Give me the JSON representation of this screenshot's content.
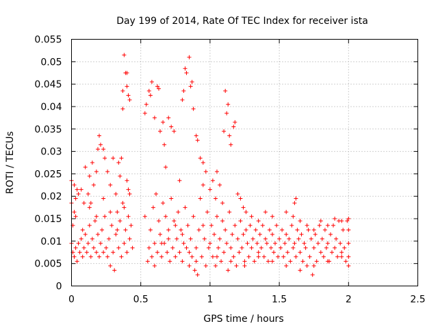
{
  "chart_data": {
    "type": "scatter",
    "title": "Day 199 of 2014, Rate Of TEC Index for receiver ista",
    "xlabel": "GPS time / hours",
    "ylabel": "ROTI / TECUs",
    "xlim": [
      0,
      2.5
    ],
    "ylim": [
      0,
      0.055
    ],
    "xticks": [
      "0",
      "0.5",
      "1",
      "1.5",
      "2",
      "2.5"
    ],
    "yticks": [
      "0",
      "0.005",
      "0.01",
      "0.015",
      "0.02",
      "0.025",
      "0.03",
      "0.035",
      "0.04",
      "0.045",
      "0.05",
      "0.055"
    ],
    "grid": true,
    "legend": "none",
    "marker": "plus",
    "color": "#ff0000",
    "points": [
      [
        0.0,
        0.0235
      ],
      [
        0.0,
        0.0185
      ],
      [
        0.01,
        0.0135
      ],
      [
        0.02,
        0.0165
      ],
      [
        0.02,
        0.0225
      ],
      [
        0.03,
        0.0195
      ],
      [
        0.04,
        0.0215
      ],
      [
        0.05,
        0.0205
      ],
      [
        0.07,
        0.0215
      ],
      [
        0.09,
        0.0185
      ],
      [
        0.1,
        0.0265
      ],
      [
        0.12,
        0.0205
      ],
      [
        0.13,
        0.0245
      ],
      [
        0.14,
        0.0185
      ],
      [
        0.15,
        0.0275
      ],
      [
        0.16,
        0.0225
      ],
      [
        0.18,
        0.0255
      ],
      [
        0.19,
        0.0305
      ],
      [
        0.2,
        0.0335
      ],
      [
        0.21,
        0.0315
      ],
      [
        0.23,
        0.0305
      ],
      [
        0.24,
        0.0285
      ],
      [
        0.26,
        0.0255
      ],
      [
        0.28,
        0.0225
      ],
      [
        0.3,
        0.0285
      ],
      [
        0.32,
        0.0205
      ],
      [
        0.34,
        0.0275
      ],
      [
        0.35,
        0.0245
      ],
      [
        0.36,
        0.0285
      ],
      [
        0.37,
        0.0395
      ],
      [
        0.37,
        0.0435
      ],
      [
        0.38,
        0.0515
      ],
      [
        0.39,
        0.0475
      ],
      [
        0.4,
        0.0475
      ],
      [
        0.4,
        0.0445
      ],
      [
        0.41,
        0.0425
      ],
      [
        0.42,
        0.0415
      ],
      [
        0.4,
        0.0235
      ],
      [
        0.41,
        0.0215
      ],
      [
        0.42,
        0.0205
      ],
      [
        0.0,
        0.0095
      ],
      [
        0.01,
        0.0075
      ],
      [
        0.02,
        0.0065
      ],
      [
        0.03,
        0.0085
      ],
      [
        0.04,
        0.0055
      ],
      [
        0.05,
        0.0095
      ],
      [
        0.06,
        0.0075
      ],
      [
        0.07,
        0.0105
      ],
      [
        0.08,
        0.0065
      ],
      [
        0.09,
        0.0085
      ],
      [
        0.1,
        0.0115
      ],
      [
        0.11,
        0.0075
      ],
      [
        0.12,
        0.0095
      ],
      [
        0.13,
        0.0135
      ],
      [
        0.14,
        0.0065
      ],
      [
        0.15,
        0.0105
      ],
      [
        0.16,
        0.0085
      ],
      [
        0.17,
        0.0145
      ],
      [
        0.18,
        0.0075
      ],
      [
        0.19,
        0.0115
      ],
      [
        0.2,
        0.0065
      ],
      [
        0.21,
        0.0095
      ],
      [
        0.22,
        0.0125
      ],
      [
        0.23,
        0.0075
      ],
      [
        0.24,
        0.0155
      ],
      [
        0.25,
        0.0085
      ],
      [
        0.26,
        0.0065
      ],
      [
        0.27,
        0.0105
      ],
      [
        0.28,
        0.0045
      ],
      [
        0.29,
        0.0135
      ],
      [
        0.3,
        0.0075
      ],
      [
        0.31,
        0.0035
      ],
      [
        0.32,
        0.0115
      ],
      [
        0.33,
        0.0165
      ],
      [
        0.34,
        0.0085
      ],
      [
        0.35,
        0.0145
      ],
      [
        0.36,
        0.0065
      ],
      [
        0.37,
        0.0185
      ],
      [
        0.38,
        0.0095
      ],
      [
        0.39,
        0.0125
      ],
      [
        0.4,
        0.0075
      ],
      [
        0.41,
        0.0155
      ],
      [
        0.42,
        0.0105
      ],
      [
        0.43,
        0.0135
      ],
      [
        0.44,
        0.0085
      ],
      [
        0.03,
        0.0155
      ],
      [
        0.08,
        0.0125
      ],
      [
        0.13,
        0.0175
      ],
      [
        0.18,
        0.0155
      ],
      [
        0.23,
        0.0195
      ],
      [
        0.28,
        0.0165
      ],
      [
        0.33,
        0.0125
      ],
      [
        0.38,
        0.0175
      ],
      [
        0.53,
        0.0385
      ],
      [
        0.54,
        0.0405
      ],
      [
        0.56,
        0.0435
      ],
      [
        0.57,
        0.0425
      ],
      [
        0.58,
        0.0455
      ],
      [
        0.6,
        0.0375
      ],
      [
        0.62,
        0.0445
      ],
      [
        0.63,
        0.044
      ],
      [
        0.64,
        0.0345
      ],
      [
        0.66,
        0.0365
      ],
      [
        0.67,
        0.0315
      ],
      [
        0.68,
        0.0265
      ],
      [
        0.7,
        0.0375
      ],
      [
        0.72,
        0.0355
      ],
      [
        0.74,
        0.0345
      ],
      [
        0.78,
        0.0235
      ],
      [
        0.8,
        0.0415
      ],
      [
        0.81,
        0.0435
      ],
      [
        0.82,
        0.0485
      ],
      [
        0.83,
        0.0475
      ],
      [
        0.85,
        0.051
      ],
      [
        0.86,
        0.0445
      ],
      [
        0.87,
        0.0455
      ],
      [
        0.88,
        0.0395
      ],
      [
        0.9,
        0.0335
      ],
      [
        0.91,
        0.0325
      ],
      [
        0.93,
        0.0285
      ],
      [
        0.95,
        0.0275
      ],
      [
        0.97,
        0.0255
      ],
      [
        0.53,
        0.0155
      ],
      [
        0.55,
        0.0055
      ],
      [
        0.56,
        0.0085
      ],
      [
        0.57,
        0.0125
      ],
      [
        0.58,
        0.0065
      ],
      [
        0.59,
        0.0175
      ],
      [
        0.6,
        0.0095
      ],
      [
        0.61,
        0.0205
      ],
      [
        0.62,
        0.0075
      ],
      [
        0.63,
        0.0145
      ],
      [
        0.64,
        0.0115
      ],
      [
        0.65,
        0.0065
      ],
      [
        0.66,
        0.0185
      ],
      [
        0.67,
        0.0095
      ],
      [
        0.68,
        0.0155
      ],
      [
        0.69,
        0.0075
      ],
      [
        0.7,
        0.0125
      ],
      [
        0.71,
        0.0055
      ],
      [
        0.72,
        0.0195
      ],
      [
        0.73,
        0.0085
      ],
      [
        0.74,
        0.0145
      ],
      [
        0.75,
        0.0065
      ],
      [
        0.76,
        0.0105
      ],
      [
        0.77,
        0.0165
      ],
      [
        0.78,
        0.0075
      ],
      [
        0.79,
        0.0125
      ],
      [
        0.8,
        0.0055
      ],
      [
        0.81,
        0.0095
      ],
      [
        0.82,
        0.0175
      ],
      [
        0.83,
        0.0085
      ],
      [
        0.84,
        0.0135
      ],
      [
        0.85,
        0.0045
      ],
      [
        0.86,
        0.0105
      ],
      [
        0.87,
        0.0065
      ],
      [
        0.88,
        0.0155
      ],
      [
        0.89,
        0.0035
      ],
      [
        0.9,
        0.0085
      ],
      [
        0.91,
        0.0025
      ],
      [
        0.92,
        0.0125
      ],
      [
        0.93,
        0.0195
      ],
      [
        0.94,
        0.0065
      ],
      [
        0.95,
        0.0225
      ],
      [
        0.96,
        0.0105
      ],
      [
        0.97,
        0.0045
      ],
      [
        0.98,
        0.0165
      ],
      [
        0.99,
        0.0085
      ],
      [
        0.6,
        0.0045
      ],
      [
        0.65,
        0.0095
      ],
      [
        0.7,
        0.0105
      ],
      [
        0.75,
        0.0135
      ],
      [
        0.8,
        0.0115
      ],
      [
        0.85,
        0.0075
      ],
      [
        0.9,
        0.0055
      ],
      [
        0.95,
        0.0135
      ],
      [
        1.0,
        0.0215
      ],
      [
        1.02,
        0.0235
      ],
      [
        1.04,
        0.0195
      ],
      [
        1.05,
        0.0255
      ],
      [
        1.07,
        0.0225
      ],
      [
        1.09,
        0.0185
      ],
      [
        1.1,
        0.0345
      ],
      [
        1.11,
        0.0435
      ],
      [
        1.12,
        0.0385
      ],
      [
        1.13,
        0.0405
      ],
      [
        1.14,
        0.0335
      ],
      [
        1.15,
        0.0315
      ],
      [
        1.17,
        0.0355
      ],
      [
        1.18,
        0.0365
      ],
      [
        1.2,
        0.0205
      ],
      [
        1.22,
        0.0195
      ],
      [
        1.24,
        0.0175
      ],
      [
        1.26,
        0.0165
      ],
      [
        1.3,
        0.0155
      ],
      [
        1.35,
        0.0145
      ],
      [
        1.4,
        0.0165
      ],
      [
        1.45,
        0.0155
      ],
      [
        1.62,
        0.0195
      ],
      [
        1.61,
        0.0185
      ],
      [
        1.0,
        0.0095
      ],
      [
        1.01,
        0.0135
      ],
      [
        1.02,
        0.0065
      ],
      [
        1.03,
        0.0115
      ],
      [
        1.04,
        0.0045
      ],
      [
        1.05,
        0.0155
      ],
      [
        1.06,
        0.0085
      ],
      [
        1.07,
        0.0105
      ],
      [
        1.08,
        0.0055
      ],
      [
        1.09,
        0.0145
      ],
      [
        1.1,
        0.0075
      ],
      [
        1.11,
        0.0125
      ],
      [
        1.12,
        0.0095
      ],
      [
        1.13,
        0.0035
      ],
      [
        1.14,
        0.0165
      ],
      [
        1.15,
        0.0085
      ],
      [
        1.16,
        0.0115
      ],
      [
        1.17,
        0.0065
      ],
      [
        1.18,
        0.0135
      ],
      [
        1.19,
        0.0045
      ],
      [
        1.2,
        0.0105
      ],
      [
        1.21,
        0.0075
      ],
      [
        1.22,
        0.0145
      ],
      [
        1.23,
        0.0085
      ],
      [
        1.24,
        0.0115
      ],
      [
        1.25,
        0.0055
      ],
      [
        1.26,
        0.0125
      ],
      [
        1.27,
        0.0095
      ],
      [
        1.28,
        0.0065
      ],
      [
        1.29,
        0.0135
      ],
      [
        1.3,
        0.0085
      ],
      [
        1.31,
        0.0105
      ],
      [
        1.32,
        0.0055
      ],
      [
        1.33,
        0.0125
      ],
      [
        1.34,
        0.0095
      ],
      [
        1.35,
        0.0075
      ],
      [
        1.36,
        0.0115
      ],
      [
        1.37,
        0.0085
      ],
      [
        1.38,
        0.0135
      ],
      [
        1.39,
        0.0065
      ],
      [
        1.4,
        0.0105
      ],
      [
        1.41,
        0.0095
      ],
      [
        1.42,
        0.0055
      ],
      [
        1.43,
        0.0125
      ],
      [
        1.44,
        0.0085
      ],
      [
        1.45,
        0.0115
      ],
      [
        1.46,
        0.0075
      ],
      [
        1.47,
        0.0095
      ],
      [
        1.48,
        0.0135
      ],
      [
        1.49,
        0.0065
      ],
      [
        1.5,
        0.0105
      ],
      [
        1.51,
        0.0085
      ],
      [
        1.52,
        0.0125
      ],
      [
        1.53,
        0.0065
      ],
      [
        1.54,
        0.0095
      ],
      [
        1.55,
        0.0115
      ],
      [
        1.56,
        0.0075
      ],
      [
        1.57,
        0.0105
      ],
      [
        1.58,
        0.0055
      ],
      [
        1.59,
        0.0135
      ],
      [
        1.6,
        0.0085
      ],
      [
        1.61,
        0.0095
      ],
      [
        1.62,
        0.0065
      ],
      [
        1.63,
        0.0125
      ],
      [
        1.64,
        0.0105
      ],
      [
        1.65,
        0.0075
      ],
      [
        1.66,
        0.0115
      ],
      [
        1.67,
        0.0055
      ],
      [
        1.68,
        0.0095
      ],
      [
        1.69,
        0.0085
      ],
      [
        1.7,
        0.0045
      ],
      [
        1.71,
        0.0125
      ],
      [
        1.72,
        0.0065
      ],
      [
        1.73,
        0.0105
      ],
      [
        1.74,
        0.0025
      ],
      [
        1.75,
        0.0085
      ],
      [
        1.76,
        0.0115
      ],
      [
        1.77,
        0.0055
      ],
      [
        1.78,
        0.0095
      ],
      [
        1.79,
        0.0135
      ],
      [
        1.8,
        0.0075
      ],
      [
        1.81,
        0.0105
      ],
      [
        1.82,
        0.0065
      ],
      [
        1.83,
        0.0125
      ],
      [
        1.84,
        0.0085
      ],
      [
        1.85,
        0.0095
      ],
      [
        1.86,
        0.0055
      ],
      [
        1.87,
        0.0115
      ],
      [
        1.88,
        0.0075
      ],
      [
        1.89,
        0.0135
      ],
      [
        1.9,
        0.0085
      ],
      [
        1.91,
        0.0105
      ],
      [
        1.92,
        0.0065
      ],
      [
        1.93,
        0.0145
      ],
      [
        1.94,
        0.0095
      ],
      [
        1.95,
        0.0075
      ],
      [
        1.96,
        0.0125
      ],
      [
        1.97,
        0.0085
      ],
      [
        1.98,
        0.0055
      ],
      [
        1.99,
        0.0145
      ],
      [
        2.0,
        0.0095
      ],
      [
        2.0,
        0.0065
      ],
      [
        2.0,
        0.0045
      ],
      [
        2.0,
        0.0125
      ],
      [
        2.0,
        0.015
      ],
      [
        1.55,
        0.0165
      ],
      [
        1.6,
        0.0155
      ],
      [
        1.65,
        0.0145
      ],
      [
        1.7,
        0.0135
      ],
      [
        1.75,
        0.0125
      ],
      [
        1.8,
        0.0145
      ],
      [
        1.85,
        0.0135
      ],
      [
        1.9,
        0.015
      ],
      [
        1.95,
        0.0145
      ],
      [
        1.05,
        0.0065
      ],
      [
        1.15,
        0.0055
      ],
      [
        1.25,
        0.0045
      ],
      [
        1.35,
        0.0065
      ],
      [
        1.45,
        0.0055
      ],
      [
        1.55,
        0.0045
      ],
      [
        1.65,
        0.0035
      ],
      [
        1.75,
        0.0045
      ],
      [
        1.85,
        0.0055
      ],
      [
        1.95,
        0.0065
      ]
    ]
  }
}
